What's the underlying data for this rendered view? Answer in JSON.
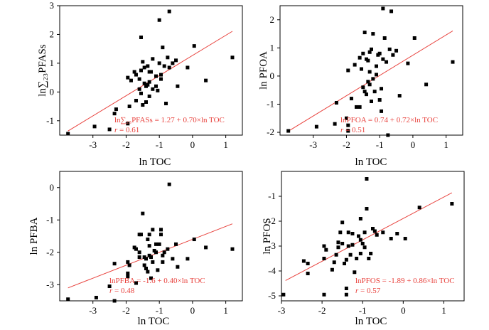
{
  "colors": {
    "fit_line": "#e8413c",
    "marker": "#000000",
    "axis": "#000000"
  },
  "chart_data": [
    {
      "type": "scatter",
      "id": "sum",
      "xlabel": "ln TOC",
      "ylabel": "ln∑₂₃PFASs",
      "xlim": [
        -4,
        1.5
      ],
      "ylim": [
        -1.5,
        3
      ],
      "xticks": [
        -3,
        -2,
        -1,
        0,
        1
      ],
      "yticks": [
        -1,
        0,
        1,
        2,
        3
      ],
      "fit": {
        "intercept": 1.27,
        "slope": 0.7,
        "x_range": [
          -3.75,
          1.2
        ]
      },
      "annotation": "ln∑₂₃PFASs = 1.27 + 0.70×ln TOC",
      "r_label": "r",
      "r_value": " = 0.61",
      "points": [
        [
          -3.75,
          -1.45
        ],
        [
          -2.95,
          -1.2
        ],
        [
          -2.5,
          -1.3
        ],
        [
          -2.35,
          -0.75
        ],
        [
          -2.3,
          -0.6
        ],
        [
          -1.95,
          -1.1
        ],
        [
          -1.9,
          -0.5
        ],
        [
          -1.95,
          0.5
        ],
        [
          -1.85,
          0.4
        ],
        [
          -1.75,
          0.7
        ],
        [
          -1.7,
          0.6
        ],
        [
          -1.7,
          -0.3
        ],
        [
          -1.6,
          0.1
        ],
        [
          -1.55,
          -0.05
        ],
        [
          -1.55,
          0.75
        ],
        [
          -1.5,
          1.05
        ],
        [
          -1.5,
          -0.45
        ],
        [
          -1.45,
          0.3
        ],
        [
          -1.4,
          0.2
        ],
        [
          -1.4,
          -0.35
        ],
        [
          -1.35,
          0.9
        ],
        [
          -1.35,
          0.25
        ],
        [
          -1.3,
          0.35
        ],
        [
          -1.3,
          -0.15
        ],
        [
          -1.25,
          0.7
        ],
        [
          -1.2,
          1.15
        ],
        [
          -1.2,
          0.1
        ],
        [
          -1.1,
          0.2
        ],
        [
          -1.05,
          0.05
        ],
        [
          -1.0,
          1.0
        ],
        [
          -0.95,
          0.45
        ],
        [
          -0.95,
          0.6
        ],
        [
          -0.9,
          1.55
        ],
        [
          -0.85,
          0.9
        ],
        [
          -0.8,
          -0.4
        ],
        [
          -0.75,
          1.2
        ],
        [
          -0.7,
          0.85
        ],
        [
          -0.7,
          2.8
        ],
        [
          -0.5,
          1.1
        ],
        [
          -0.45,
          0.2
        ],
        [
          -0.15,
          0.85
        ],
        [
          0.05,
          1.6
        ],
        [
          0.4,
          0.4
        ],
        [
          1.2,
          1.2
        ],
        [
          -1.0,
          2.5
        ],
        [
          -1.55,
          1.9
        ],
        [
          -1.3,
          0.7
        ],
        [
          -1.6,
          0.45
        ],
        [
          -1.45,
          0.85
        ],
        [
          -1.1,
          0.55
        ],
        [
          -0.6,
          1.0
        ]
      ]
    },
    {
      "type": "scatter",
      "id": "pfoa",
      "xlabel": "ln TOC",
      "ylabel": "ln PFOA",
      "xlim": [
        -4,
        1.5
      ],
      "ylim": [
        -2.1,
        2.5
      ],
      "xticks": [
        -3,
        -2,
        -1,
        0,
        1
      ],
      "yticks": [
        -2,
        -1,
        0,
        1,
        2
      ],
      "fit": {
        "intercept": 0.74,
        "slope": 0.72,
        "x_range": [
          -3.75,
          1.2
        ]
      },
      "annotation": "lnPFOA = 0.74 + 0.72×ln TOC",
      "r_label": "r",
      "r_value": " = 0.51",
      "points": [
        [
          -3.75,
          -1.95
        ],
        [
          -2.9,
          -1.8
        ],
        [
          -2.35,
          -1.7
        ],
        [
          -2.3,
          -0.95
        ],
        [
          -2.0,
          -1.5
        ],
        [
          -1.95,
          -1.95
        ],
        [
          -1.95,
          -1.75
        ],
        [
          -1.95,
          0.2
        ],
        [
          -1.85,
          -0.8
        ],
        [
          -1.75,
          0.4
        ],
        [
          -1.7,
          -1.1
        ],
        [
          -1.6,
          -1.1
        ],
        [
          -1.55,
          0.25
        ],
        [
          -1.5,
          -0.4
        ],
        [
          -1.5,
          0.8
        ],
        [
          -1.45,
          1.55
        ],
        [
          -1.45,
          -0.55
        ],
        [
          -1.4,
          0.6
        ],
        [
          -1.35,
          0.55
        ],
        [
          -1.35,
          -0.2
        ],
        [
          -1.3,
          -0.3
        ],
        [
          -1.3,
          0.85
        ],
        [
          -1.25,
          -0.9
        ],
        [
          -1.2,
          -0.1
        ],
        [
          -1.2,
          1.5
        ],
        [
          -1.15,
          -0.55
        ],
        [
          -1.1,
          0.35
        ],
        [
          -1.05,
          0.75
        ],
        [
          -1.0,
          -0.85
        ],
        [
          -0.95,
          -0.45
        ],
        [
          -0.95,
          -1.25
        ],
        [
          -0.9,
          2.4
        ],
        [
          -0.85,
          1.35
        ],
        [
          -0.8,
          0.5
        ],
        [
          -0.75,
          -2.1
        ],
        [
          -0.7,
          0.95
        ],
        [
          -0.65,
          2.3
        ],
        [
          -0.5,
          0.9
        ],
        [
          -0.4,
          -0.7
        ],
        [
          -0.15,
          0.45
        ],
        [
          0.05,
          1.35
        ],
        [
          0.4,
          -0.3
        ],
        [
          1.2,
          0.5
        ],
        [
          -1.25,
          0.95
        ],
        [
          -1.1,
          0.05
        ],
        [
          -0.9,
          0.6
        ],
        [
          -1.3,
          0.15
        ],
        [
          -1.6,
          0.65
        ],
        [
          -1.4,
          -0.65
        ],
        [
          -0.6,
          0.75
        ],
        [
          -1.0,
          0.8
        ]
      ]
    },
    {
      "type": "scatter",
      "id": "pfba",
      "xlabel": "ln TOC",
      "ylabel": "ln PFBA",
      "xlim": [
        -4,
        1.5
      ],
      "ylim": [
        -3.5,
        0.5
      ],
      "xticks": [
        -3,
        -2,
        -1,
        0,
        1
      ],
      "yticks": [
        -3,
        -2,
        -1,
        0
      ],
      "fit": {
        "intercept": -1.6,
        "slope": 0.4,
        "x_range": [
          -3.75,
          1.2
        ]
      },
      "annotation": "lnPFBA = -1.6 + 0.40×ln TOC",
      "r_label": "r",
      "r_value": " = 0.48",
      "points": [
        [
          -3.75,
          -3.45
        ],
        [
          -2.9,
          -3.4
        ],
        [
          -2.5,
          -3.05
        ],
        [
          -2.35,
          -3.5
        ],
        [
          -2.35,
          -2.35
        ],
        [
          -1.95,
          -2.75
        ],
        [
          -1.95,
          -2.65
        ],
        [
          -1.95,
          -2.3
        ],
        [
          -1.9,
          -2.4
        ],
        [
          -1.75,
          -1.85
        ],
        [
          -1.7,
          -1.9
        ],
        [
          -1.7,
          -2.95
        ],
        [
          -1.6,
          -2.15
        ],
        [
          -1.6,
          -2.0
        ],
        [
          -1.55,
          -1.45
        ],
        [
          -1.5,
          -0.8
        ],
        [
          -1.45,
          -2.4
        ],
        [
          -1.45,
          -2.15
        ],
        [
          -1.4,
          -2.5
        ],
        [
          -1.35,
          -2.6
        ],
        [
          -1.35,
          -1.6
        ],
        [
          -1.3,
          -2.1
        ],
        [
          -1.3,
          -1.8
        ],
        [
          -1.25,
          -2.15
        ],
        [
          -1.2,
          -2.3
        ],
        [
          -1.2,
          -1.3
        ],
        [
          -1.15,
          -1.95
        ],
        [
          -1.1,
          -2.0
        ],
        [
          -1.05,
          -2.55
        ],
        [
          -1.0,
          -1.75
        ],
        [
          -0.95,
          -1.3
        ],
        [
          -0.95,
          -1.45
        ],
        [
          -0.9,
          -2.3
        ],
        [
          -0.85,
          -2.0
        ],
        [
          -0.75,
          -1.9
        ],
        [
          -0.7,
          0.1
        ],
        [
          -0.5,
          -1.75
        ],
        [
          -0.45,
          -2.45
        ],
        [
          -0.15,
          -2.2
        ],
        [
          0.05,
          -1.6
        ],
        [
          0.4,
          -1.85
        ],
        [
          1.2,
          -1.9
        ],
        [
          -1.6,
          -1.45
        ],
        [
          -1.4,
          -2.2
        ],
        [
          -1.1,
          -1.75
        ],
        [
          -0.9,
          -2.1
        ],
        [
          -1.3,
          -1.45
        ],
        [
          -0.6,
          -2.2
        ],
        [
          -1.25,
          -2.8
        ]
      ]
    },
    {
      "type": "scatter",
      "id": "pfos",
      "xlabel": "ln TOC",
      "ylabel": "ln PFOS",
      "xlim": [
        -3,
        1.5
      ],
      "ylim": [
        -5.2,
        0
      ],
      "xticks": [
        -3,
        -2,
        -1,
        0,
        1
      ],
      "yticks": [
        -5,
        -4,
        -3,
        -2,
        -1
      ],
      "fit": {
        "intercept": -1.89,
        "slope": 0.86,
        "x_range": [
          -2.9,
          1.2
        ]
      },
      "annotation": "lnPFOS = -1.89 + 0.86×ln TOC",
      "r_label": "r",
      "r_value": " = 0.57",
      "points": [
        [
          -2.95,
          -4.95
        ],
        [
          -2.45,
          -3.6
        ],
        [
          -2.35,
          -4.1
        ],
        [
          -2.35,
          -3.7
        ],
        [
          -1.95,
          -4.95
        ],
        [
          -1.95,
          -3.5
        ],
        [
          -1.95,
          -3.0
        ],
        [
          -1.9,
          -3.15
        ],
        [
          -1.75,
          -3.95
        ],
        [
          -1.7,
          -3.65
        ],
        [
          -1.65,
          -3.35
        ],
        [
          -1.6,
          -3.05
        ],
        [
          -1.55,
          -2.45
        ],
        [
          -1.5,
          -2.05
        ],
        [
          -1.5,
          -2.9
        ],
        [
          -1.45,
          -3.7
        ],
        [
          -1.4,
          -4.7
        ],
        [
          -1.4,
          -4.95
        ],
        [
          -1.35,
          -3.0
        ],
        [
          -1.35,
          -2.45
        ],
        [
          -1.3,
          -3.35
        ],
        [
          -1.25,
          -2.5
        ],
        [
          -1.2,
          -4.05
        ],
        [
          -1.15,
          -3.5
        ],
        [
          -1.1,
          -2.6
        ],
        [
          -1.05,
          -3.3
        ],
        [
          -1.05,
          -1.9
        ],
        [
          -1.0,
          -2.9
        ],
        [
          -0.95,
          -3.05
        ],
        [
          -0.9,
          -1.5
        ],
        [
          -0.9,
          -0.3
        ],
        [
          -0.85,
          -3.5
        ],
        [
          -0.8,
          -3.3
        ],
        [
          -0.75,
          -2.3
        ],
        [
          -0.7,
          -2.4
        ],
        [
          -0.65,
          -2.55
        ],
        [
          -0.5,
          -2.45
        ],
        [
          -0.3,
          -2.7
        ],
        [
          -0.15,
          -2.5
        ],
        [
          0.05,
          -2.7
        ],
        [
          0.4,
          -1.45
        ],
        [
          1.2,
          -1.3
        ],
        [
          -1.6,
          -2.85
        ],
        [
          -1.25,
          -2.95
        ],
        [
          -1.05,
          -2.75
        ],
        [
          -0.95,
          -2.45
        ],
        [
          -1.4,
          -3.55
        ]
      ]
    }
  ]
}
